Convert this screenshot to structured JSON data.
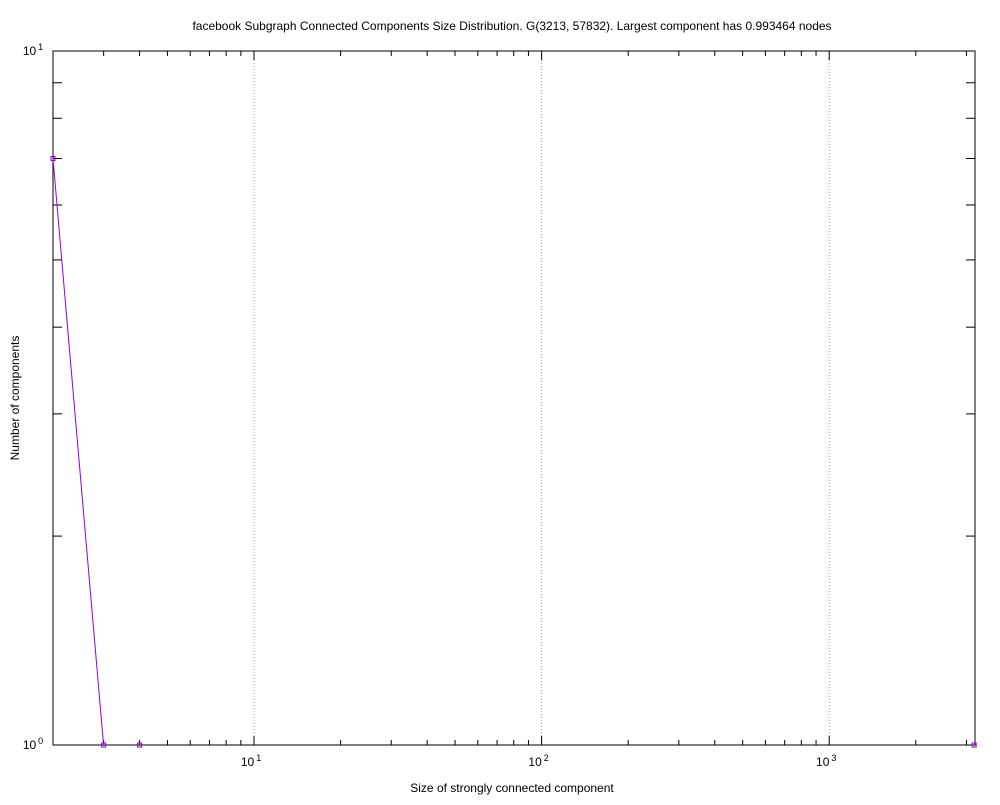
{
  "chart_data": {
    "type": "line",
    "title": "facebook Subgraph Connected Components Size Distribution. G(3213, 57832). Largest component has 0.993464 nodes",
    "xlabel": "Size of strongly connected component",
    "ylabel": "Number of components",
    "x_scale": "log",
    "y_scale": "log",
    "xlim": [
      2,
      3213
    ],
    "ylim": [
      1,
      10
    ],
    "x_ticks": [
      {
        "value": 10,
        "base": "10",
        "exp": "1"
      },
      {
        "value": 100,
        "base": "10",
        "exp": "2"
      },
      {
        "value": 1000,
        "base": "10",
        "exp": "3"
      }
    ],
    "y_ticks": [
      {
        "value": 1,
        "base": "10",
        "exp": "0"
      },
      {
        "value": 10,
        "base": "10",
        "exp": "1"
      }
    ],
    "grid": "x-major",
    "legend": "none",
    "series": [
      {
        "color": "#9400d3",
        "points": [
          {
            "x": 2,
            "y": 7
          },
          {
            "x": 3,
            "y": 1
          },
          {
            "x": 4,
            "y": 1
          },
          {
            "x": 3192,
            "y": 1
          }
        ]
      }
    ]
  }
}
